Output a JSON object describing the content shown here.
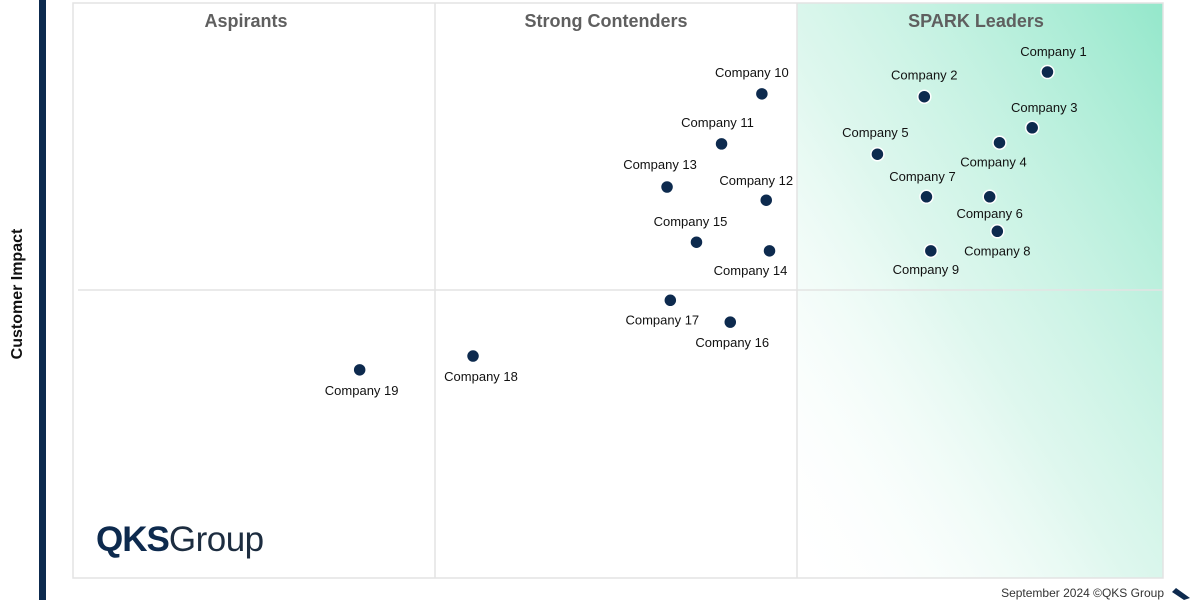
{
  "chart_data": {
    "type": "scatter",
    "title": "",
    "xlabel": "",
    "ylabel": "Customer Impact",
    "xlim": [
      0,
      100
    ],
    "ylim": [
      0,
      100
    ],
    "grid": false,
    "quadrant_labels": [
      "Aspirants",
      "Strong Contenders",
      "SPARK Leaders"
    ],
    "points": [
      {
        "name": "Company 1",
        "x": 89.4,
        "y": 88.0
      },
      {
        "name": "Company 2",
        "x": 78.1,
        "y": 83.7
      },
      {
        "name": "Company 3",
        "x": 88.0,
        "y": 78.3
      },
      {
        "name": "Company 4",
        "x": 85.0,
        "y": 75.7
      },
      {
        "name": "Company 5",
        "x": 73.8,
        "y": 73.7
      },
      {
        "name": "Company 6",
        "x": 84.1,
        "y": 66.3
      },
      {
        "name": "Company 7",
        "x": 78.3,
        "y": 66.3
      },
      {
        "name": "Company 8",
        "x": 84.8,
        "y": 60.3
      },
      {
        "name": "Company 9",
        "x": 78.7,
        "y": 56.9
      },
      {
        "name": "Company 10",
        "x": 63.2,
        "y": 84.2
      },
      {
        "name": "Company 11",
        "x": 59.5,
        "y": 75.5
      },
      {
        "name": "Company 12",
        "x": 63.6,
        "y": 65.7
      },
      {
        "name": "Company 13",
        "x": 54.5,
        "y": 68.0
      },
      {
        "name": "Company 14",
        "x": 63.9,
        "y": 56.9
      },
      {
        "name": "Company 15",
        "x": 57.2,
        "y": 58.4
      },
      {
        "name": "Company 16",
        "x": 60.3,
        "y": 44.5
      },
      {
        "name": "Company 17",
        "x": 54.8,
        "y": 48.3
      },
      {
        "name": "Company 18",
        "x": 36.7,
        "y": 38.6
      },
      {
        "name": "Company 19",
        "x": 26.3,
        "y": 36.2
      }
    ],
    "colors": {
      "point": "#0d2a4e",
      "axis": "#0d2a4e",
      "leader_gradient": "#8ee6c8"
    }
  },
  "logo": {
    "bold": "QKS",
    "regular": "Group"
  },
  "footer": "September 2024 ©QKS Group"
}
